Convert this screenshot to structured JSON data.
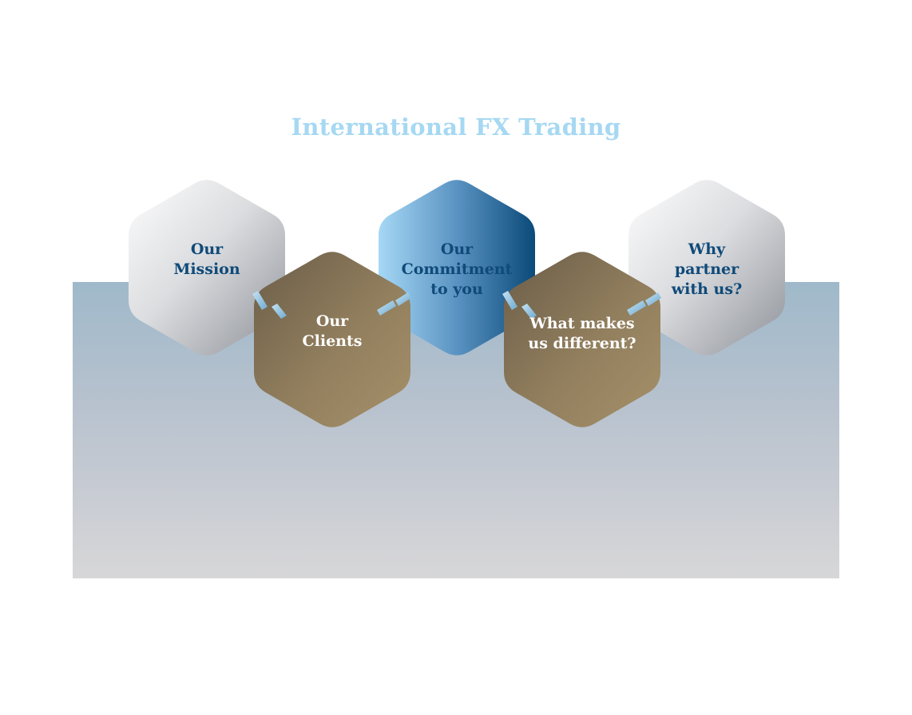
{
  "title": "International FX Trading",
  "hexagons": [
    {
      "label": "Our\nMission",
      "style": "silver"
    },
    {
      "label": "Our\nClients",
      "style": "gold"
    },
    {
      "label": "Our\nCommitment\nto you",
      "style": "blue"
    },
    {
      "label": "What makes\nus different?",
      "style": "gold"
    },
    {
      "label": "Why\npartner\nwith us?",
      "style": "silver"
    }
  ],
  "colors": {
    "title": "#a6d8f2",
    "label_dark": "#0f4a79",
    "label_light": "#ffffff",
    "silver_light": "#fdfdfd",
    "silver_dark": "#8e9299",
    "gold_dark": "#756750",
    "gold_light": "#a28e68",
    "blue_light": "#a6d8f5",
    "blue_dark": "#0b4a7a",
    "connector": "#8dc0dd"
  }
}
